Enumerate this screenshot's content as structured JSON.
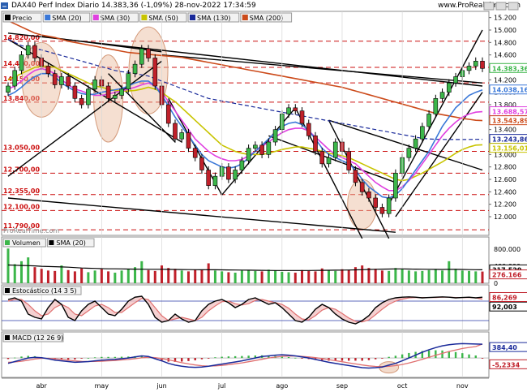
{
  "header": {
    "title": "DAX40 Perf Index Diario 14.383,36 (-1,09%) 28-nov-2022 17:34:59",
    "site": "www.ProRealTime.com",
    "watermark": "ProRealTime.com"
  },
  "colors": {
    "up": "#3cb64a",
    "down": "#c0202a",
    "sma20": "#3a78d8",
    "sma30": "#e040e0",
    "sma50": "#c8c400",
    "sma130": "#1a2a9a",
    "sma200": "#cc4a1a",
    "fib": "#cc1010",
    "trend": "#000000",
    "highlight": "#e8b89a"
  },
  "chart_data": [
    {
      "panel": "price",
      "type": "candlestick",
      "x_tick_labels": [
        "abr",
        "may",
        "jun",
        "jul",
        "ago",
        "sep",
        "oct",
        "nov"
      ],
      "y_tick_labels": [
        "15.200",
        "15.000",
        "14.800",
        "14.600",
        "14.400",
        "14.200",
        "14.000",
        "13.800",
        "13.600",
        "13.400",
        "13.200",
        "13.000",
        "12.800",
        "12.600",
        "12.400",
        "12.200",
        "12.000"
      ],
      "ylim": [
        11700,
        15300
      ],
      "legend": [
        {
          "name": "Precio",
          "color": "#000000"
        },
        {
          "name": "SMA (20)",
          "color": "#3a78d8"
        },
        {
          "name": "SMA (30)",
          "color": "#e040e0"
        },
        {
          "name": "SMA (50)",
          "color": "#c8c400"
        },
        {
          "name": "SMA (130)",
          "color": "#1a2a9a"
        },
        {
          "name": "SMA (200)",
          "color": "#cc4a1a"
        }
      ],
      "fib_levels": [
        {
          "value": 14820,
          "label": "14.820,00"
        },
        {
          "value": 14400,
          "label": "14.400,00"
        },
        {
          "value": 14150,
          "label": "14.150,00"
        },
        {
          "value": 13840,
          "label": "13.840,00"
        },
        {
          "value": 13050,
          "label": "13.050,00"
        },
        {
          "value": 12700,
          "label": "12.700,00"
        },
        {
          "value": 12355,
          "label": "12.355,00"
        },
        {
          "value": 12100,
          "label": "12.100,00"
        },
        {
          "value": 11790,
          "label": "11.790,00"
        }
      ],
      "value_labels": [
        {
          "value": 14383.36,
          "label": "14.383,36",
          "color": "#3cb64a"
        },
        {
          "value": 14038.16,
          "label": "14.038,16",
          "color": "#3a78d8"
        },
        {
          "value": 13688.57,
          "label": "13.688,57",
          "color": "#e040e0"
        },
        {
          "value": 13543.89,
          "label": "13.543,89",
          "color": "#cc4a1a"
        },
        {
          "value": 13243.86,
          "label": "13.243,86",
          "color": "#1a2a9a"
        },
        {
          "value": 13156.01,
          "label": "13.156,01",
          "color": "#c8c400"
        }
      ],
      "closes": [
        14100,
        14350,
        14600,
        14750,
        14550,
        14420,
        14300,
        14120,
        14250,
        14100,
        13900,
        13800,
        14050,
        14200,
        14100,
        13900,
        13950,
        14050,
        14300,
        14450,
        14700,
        14550,
        14100,
        13800,
        13500,
        13250,
        13350,
        13100,
        12950,
        12750,
        12500,
        12650,
        12800,
        12600,
        12750,
        12900,
        13100,
        13150,
        13000,
        13200,
        13400,
        13650,
        13750,
        13700,
        13500,
        13300,
        13050,
        12850,
        12950,
        13200,
        13050,
        12750,
        12550,
        12400,
        12300,
        12150,
        12050,
        12300,
        12700,
        12950,
        13100,
        13250,
        13450,
        13650,
        13900,
        14000,
        14150,
        14250,
        14350,
        14420,
        14500,
        14383
      ],
      "sma20": [
        13950,
        14000,
        14080,
        14180,
        14250,
        14300,
        14300,
        14250,
        14150,
        14080,
        14020,
        13980,
        13960,
        13970,
        14000,
        14020,
        14040,
        14060,
        14100,
        14150,
        14180,
        14180,
        14100,
        13950,
        13780,
        13600,
        13450,
        13300,
        13150,
        13000,
        12900,
        12850,
        12800,
        12780,
        12800,
        12850,
        12950,
        13050,
        13150,
        13250,
        13350,
        13450,
        13500,
        13520,
        13480,
        13380,
        13250,
        13100,
        13000,
        12950,
        12900,
        12850,
        12750,
        12600,
        12480,
        12400,
        12320,
        12300,
        12350,
        12450,
        12600,
        12750,
        12900,
        13050,
        13250,
        13450,
        13600,
        13750,
        13850,
        13950,
        14000,
        14038
      ],
      "sma30": [
        14050,
        14100,
        14180,
        14280,
        14350,
        14380,
        14350,
        14300,
        14200,
        14120,
        14050,
        14020,
        13980,
        13950,
        13950,
        13970,
        14000,
        14020,
        14050,
        14080,
        14120,
        14150,
        14100,
        14000,
        13850,
        13700,
        13550,
        13400,
        13250,
        13150,
        13050,
        12980,
        12930,
        12900,
        12900,
        12920,
        12980,
        13050,
        13130,
        13200,
        13280,
        13350,
        13400,
        13420,
        13420,
        13380,
        13280,
        13180,
        13080,
        13000,
        12950,
        12900,
        12850,
        12750,
        12650,
        12550,
        12480,
        12420,
        12420,
        12480,
        12580,
        12700,
        12850,
        13000,
        13150,
        13300,
        13420,
        13520,
        13600,
        13650,
        13680,
        13688
      ],
      "sma50": [
        14200,
        14250,
        14300,
        14350,
        14400,
        14420,
        14420,
        14400,
        14350,
        14300,
        14250,
        14200,
        14150,
        14100,
        14080,
        14050,
        14030,
        14020,
        14020,
        14030,
        14050,
        14080,
        14050,
        14000,
        13920,
        13850,
        13750,
        13650,
        13550,
        13450,
        13350,
        13250,
        13150,
        13100,
        13050,
        13020,
        13000,
        13000,
        13000,
        13020,
        13050,
        13080,
        13100,
        13120,
        13120,
        13100,
        13080,
        13050,
        13020,
        13000,
        12980,
        12950,
        12900,
        12850,
        12800,
        12750,
        12700,
        12650,
        12600,
        12580,
        12600,
        12650,
        12700,
        12760,
        12820,
        12880,
        12950,
        13020,
        13080,
        13120,
        13150,
        13156
      ],
      "sma130": [
        14850,
        14800,
        14750,
        14720,
        14700,
        14680,
        14650,
        14620,
        14590,
        14560,
        14530,
        14500,
        14470,
        14440,
        14410,
        14380,
        14350,
        14330,
        14320,
        14300,
        14280,
        14260,
        14220,
        14180,
        14140,
        14100,
        14060,
        14020,
        13980,
        13940,
        13900,
        13880,
        13860,
        13840,
        13820,
        13800,
        13780,
        13760,
        13740,
        13720,
        13700,
        13680,
        13660,
        13640,
        13620,
        13600,
        13580,
        13560,
        13540,
        13520,
        13500,
        13480,
        13460,
        13440,
        13420,
        13400,
        13380,
        13360,
        13340,
        13320,
        13300,
        13280,
        13260,
        13250,
        13245,
        13242,
        13240,
        13240,
        13241,
        13242,
        13243,
        13244
      ],
      "sma200": [
        15150,
        15100,
        15050,
        15000,
        14950,
        14920,
        14900,
        14880,
        14850,
        14820,
        14800,
        14780,
        14760,
        14740,
        14720,
        14700,
        14680,
        14660,
        14640,
        14630,
        14620,
        14610,
        14600,
        14590,
        14580,
        14570,
        14560,
        14540,
        14520,
        14500,
        14480,
        14460,
        14440,
        14420,
        14400,
        14380,
        14360,
        14340,
        14320,
        14300,
        14280,
        14260,
        14240,
        14220,
        14200,
        14180,
        14160,
        14140,
        14120,
        14100,
        14080,
        14050,
        14020,
        13990,
        13960,
        13930,
        13900,
        13870,
        13840,
        13810,
        13780,
        13750,
        13720,
        13690,
        13660,
        13640,
        13620,
        13600,
        13580,
        13565,
        13550,
        13544
      ]
    },
    {
      "panel": "volume",
      "type": "bar",
      "legend": [
        {
          "name": "Volumen",
          "color": "#3cb64a"
        },
        {
          "name": "SMA (20)",
          "color": "#000000"
        }
      ],
      "y_tick_labels": [
        "800.000",
        "400.000",
        "0"
      ],
      "ylim": [
        0,
        900000
      ],
      "value_labels": [
        {
          "value": 317529,
          "label": "317.529",
          "color": "#000000"
        },
        {
          "value": 276166,
          "label": "276.166",
          "color": "#c0202a"
        }
      ],
      "values": [
        820000,
        450000,
        520000,
        610000,
        380000,
        340000,
        300000,
        290000,
        420000,
        310000,
        280000,
        350000,
        260000,
        300000,
        330000,
        280000,
        250000,
        300000,
        340000,
        380000,
        520000,
        310000,
        290000,
        420000,
        360000,
        340000,
        300000,
        280000,
        320000,
        310000,
        470000,
        300000,
        280000,
        260000,
        250000,
        300000,
        310000,
        290000,
        280000,
        320000,
        300000,
        270000,
        260000,
        250000,
        310000,
        290000,
        280000,
        350000,
        300000,
        290000,
        330000,
        310000,
        380000,
        420000,
        360000,
        340000,
        300000,
        290000,
        360000,
        330000,
        300000,
        280000,
        290000,
        310000,
        320000,
        300000,
        520000,
        340000,
        300000,
        290000,
        280000,
        276166
      ],
      "sma20": [
        430000,
        425000,
        420000,
        415000,
        410000,
        400000,
        395000,
        390000,
        385000,
        380000,
        370000,
        360000,
        355000,
        350000,
        345000,
        340000,
        340000,
        338000,
        336000,
        334000,
        332000,
        330000,
        330000,
        330000,
        328000,
        326000,
        324000,
        322000,
        320000,
        318000,
        320000,
        318000,
        316000,
        314000,
        312000,
        310000,
        308000,
        306000,
        304000,
        302000,
        300000,
        300000,
        300000,
        300000,
        300000,
        300000,
        302000,
        304000,
        306000,
        308000,
        310000,
        312000,
        316000,
        320000,
        325000,
        330000,
        334000,
        336000,
        338000,
        338000,
        336000,
        334000,
        332000,
        330000,
        328000,
        326000,
        330000,
        328000,
        325000,
        322000,
        320000,
        317529
      ]
    },
    {
      "panel": "stochastic",
      "type": "line",
      "legend": [
        {
          "name": "Estocástico (14 3 5)",
          "color": "#000000"
        }
      ],
      "y_tick_labels": [
        "92,003",
        "86,269"
      ],
      "ylim": [
        0,
        100
      ],
      "value_labels": [
        {
          "value": 92.003,
          "label": "92,003",
          "color": "#000000"
        },
        {
          "value": 86.269,
          "label": "86,269",
          "color": "#c0202a"
        }
      ],
      "k": [
        85,
        90,
        80,
        40,
        30,
        25,
        60,
        85,
        70,
        30,
        20,
        50,
        70,
        80,
        60,
        40,
        35,
        55,
        80,
        92,
        95,
        70,
        30,
        15,
        20,
        40,
        25,
        15,
        20,
        50,
        70,
        80,
        85,
        75,
        60,
        70,
        85,
        90,
        80,
        70,
        75,
        60,
        40,
        20,
        15,
        30,
        55,
        70,
        60,
        40,
        25,
        15,
        10,
        20,
        35,
        60,
        75,
        85,
        90,
        92,
        93,
        92,
        90,
        91,
        92,
        93,
        92,
        90,
        91,
        92,
        90,
        92
      ],
      "d": [
        80,
        85,
        85,
        70,
        50,
        35,
        40,
        60,
        70,
        60,
        40,
        35,
        50,
        65,
        70,
        60,
        45,
        45,
        60,
        75,
        88,
        85,
        60,
        35,
        20,
        25,
        30,
        25,
        20,
        30,
        50,
        65,
        78,
        80,
        72,
        68,
        72,
        82,
        85,
        80,
        75,
        70,
        58,
        40,
        25,
        22,
        35,
        52,
        60,
        55,
        42,
        28,
        18,
        16,
        22,
        38,
        55,
        70,
        80,
        86,
        90,
        91,
        91,
        91,
        91,
        92,
        92,
        91,
        91,
        91,
        90,
        86
      ]
    },
    {
      "panel": "macd",
      "type": "line",
      "legend": [
        {
          "name": "MACD (12 26 9)",
          "color": "#000000"
        }
      ],
      "value_labels": [
        {
          "value": 384.4,
          "label": "384,40",
          "color": "#1a2a9a"
        },
        {
          "value": -5.2334,
          "label": "-5,2334",
          "color": "#c0202a"
        }
      ],
      "ylim": [
        -450,
        500
      ],
      "macd": [
        -150,
        -100,
        -50,
        0,
        20,
        10,
        -20,
        -60,
        -80,
        -100,
        -120,
        -110,
        -100,
        -80,
        -60,
        -50,
        -40,
        -20,
        0,
        30,
        60,
        40,
        -20,
        -80,
        -150,
        -200,
        -230,
        -250,
        -260,
        -250,
        -230,
        -200,
        -170,
        -140,
        -110,
        -80,
        -40,
        0,
        40,
        60,
        80,
        90,
        80,
        60,
        30,
        0,
        -40,
        -80,
        -120,
        -150,
        -180,
        -210,
        -240,
        -270,
        -280,
        -270,
        -250,
        -200,
        -150,
        -80,
        0,
        80,
        160,
        230,
        290,
        340,
        370,
        390,
        400,
        395,
        390,
        384
      ],
      "signal": [
        -120,
        -110,
        -90,
        -60,
        -30,
        -10,
        -10,
        -20,
        -40,
        -60,
        -80,
        -95,
        -100,
        -98,
        -90,
        -80,
        -70,
        -55,
        -40,
        -20,
        5,
        20,
        10,
        -15,
        -50,
        -90,
        -130,
        -165,
        -195,
        -215,
        -225,
        -220,
        -205,
        -185,
        -160,
        -135,
        -105,
        -70,
        -35,
        0,
        25,
        45,
        55,
        55,
        45,
        30,
        10,
        -15,
        -45,
        -75,
        -105,
        -135,
        -165,
        -195,
        -220,
        -235,
        -240,
        -232,
        -212,
        -180,
        -140,
        -90,
        -35,
        20,
        75,
        130,
        180,
        225,
        265,
        295,
        320,
        389
      ]
    }
  ]
}
